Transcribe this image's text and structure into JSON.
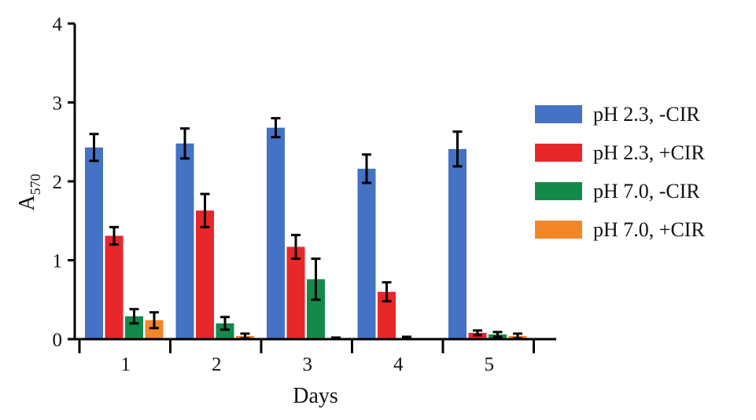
{
  "chart_data": {
    "type": "bar",
    "xlabel": "Days",
    "ylabel": "A",
    "ylabel_subscript": "570",
    "ylim": [
      0,
      4
    ],
    "yticks": [
      "0",
      "1",
      "2",
      "3",
      "4"
    ],
    "categories": [
      "1",
      "2",
      "3",
      "4",
      "5"
    ],
    "legend_position": "right",
    "error_bars": true,
    "series": [
      {
        "name": "pH 2.3, -CIR",
        "color": "#4472C4",
        "values": [
          2.43,
          2.48,
          2.68,
          2.16,
          2.41
        ],
        "errors": [
          0.17,
          0.19,
          0.12,
          0.18,
          0.22
        ]
      },
      {
        "name": "pH 2.3, +CIR",
        "color": "#E8272A",
        "values": [
          1.31,
          1.63,
          1.17,
          0.6,
          0.08
        ],
        "errors": [
          0.11,
          0.21,
          0.15,
          0.12,
          0.03
        ]
      },
      {
        "name": "pH 7.0, -CIR",
        "color": "#138A4A",
        "values": [
          0.29,
          0.2,
          0.76,
          0.01,
          0.06
        ],
        "errors": [
          0.09,
          0.08,
          0.26,
          0.02,
          0.03
        ]
      },
      {
        "name": "pH 7.0, +CIR",
        "color": "#F4862A",
        "values": [
          0.24,
          0.04,
          0.01,
          0.0,
          0.04
        ],
        "errors": [
          0.1,
          0.03,
          0.01,
          0.0,
          0.03
        ]
      }
    ]
  }
}
